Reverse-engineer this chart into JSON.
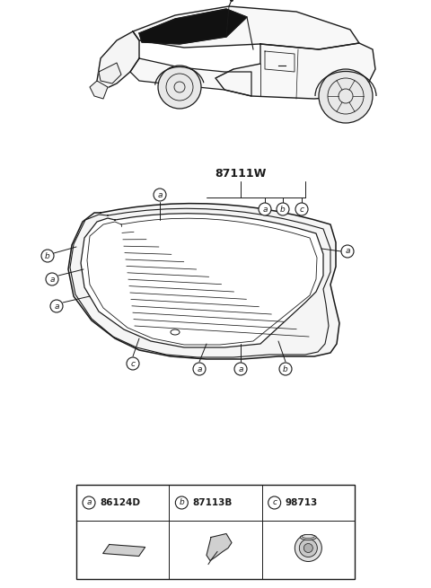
{
  "bg_color": "#ffffff",
  "line_color": "#1a1a1a",
  "title": "87111W",
  "parts": [
    {
      "id": "a",
      "code": "86124D"
    },
    {
      "id": "b",
      "code": "87113B"
    },
    {
      "id": "c",
      "code": "98713"
    }
  ]
}
